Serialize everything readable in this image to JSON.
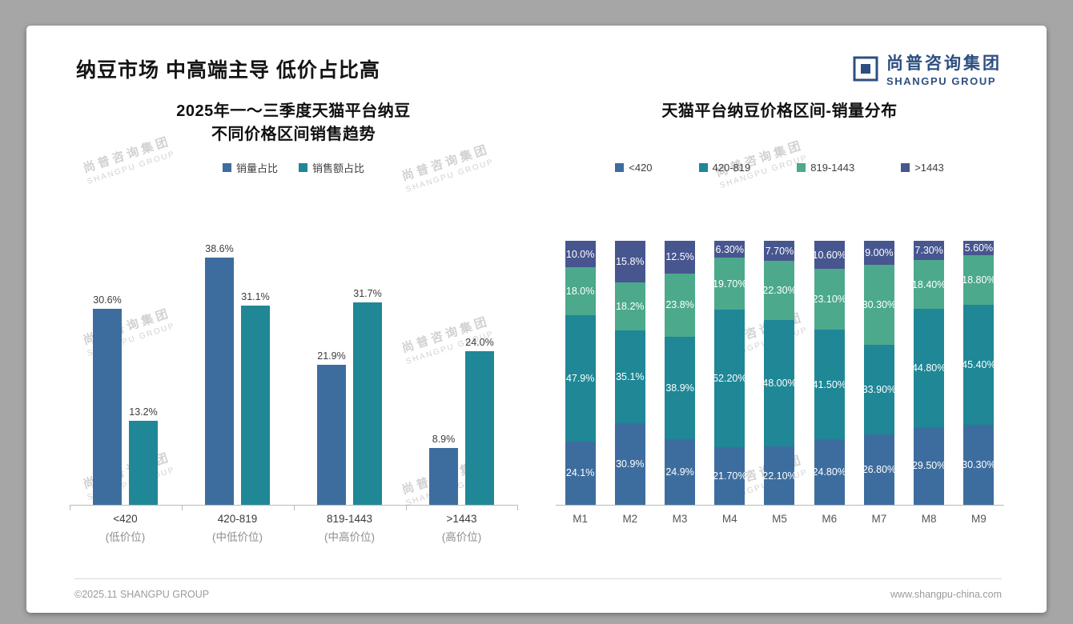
{
  "page": {
    "title": "纳豆市场 中高端主导 低价占比高",
    "logo": {
      "name_cn": "尚普咨询集团",
      "name_en": "SHANGPU GROUP"
    },
    "watermark": {
      "line1": "尚普咨询集团",
      "line2": "SHANGPU GROUP"
    },
    "footer": {
      "left": "©2025.11 SHANGPU GROUP",
      "right": "www.shangpu-china.com"
    }
  },
  "colors": {
    "blue": "#3d6d9e",
    "teal": "#1f8796",
    "green": "#4ca98c",
    "navy": "#47568f"
  },
  "chart_data": [
    {
      "type": "bar",
      "title": "2025年一～三季度天猫平台纳豆 不同价格区间销售趋势",
      "title_lines": [
        "2025年一～三季度天猫平台纳豆",
        "不同价格区间销售趋势"
      ],
      "categories": [
        "<420",
        "420-819",
        "819-1443",
        ">1443"
      ],
      "category_sublabels": [
        "(低价位)",
        "(中低价位)",
        "(中高价位)",
        "(高价位)"
      ],
      "series": [
        {
          "name": "销量占比",
          "color_key": "blue",
          "values": [
            30.6,
            38.6,
            21.9,
            8.9
          ],
          "labels": [
            "30.6%",
            "38.6%",
            "21.9%",
            "8.9%"
          ]
        },
        {
          "name": "销售额占比",
          "color_key": "teal",
          "values": [
            13.2,
            31.1,
            31.7,
            24.0
          ],
          "labels": [
            "13.2%",
            "31.1%",
            "31.7%",
            "24.0%"
          ]
        }
      ],
      "xlabel": "",
      "ylabel": "",
      "ylim": [
        0,
        45
      ],
      "grid": false,
      "legend_position": "top"
    },
    {
      "type": "bar",
      "stacked": true,
      "title": "天猫平台纳豆价格区间-销量分布",
      "categories": [
        "M1",
        "M2",
        "M3",
        "M4",
        "M5",
        "M6",
        "M7",
        "M8",
        "M9"
      ],
      "series": [
        {
          "name": "<420",
          "color_key": "blue",
          "values": [
            24.1,
            30.9,
            24.9,
            21.7,
            22.1,
            24.8,
            26.8,
            29.5,
            30.3
          ],
          "labels": [
            "24.1%",
            "30.9%",
            "24.9%",
            "21.70%",
            "22.10%",
            "24.80%",
            "26.80%",
            "29.50%",
            "30.30%"
          ]
        },
        {
          "name": "420-819",
          "color_key": "teal",
          "values": [
            47.9,
            35.1,
            38.9,
            52.2,
            48.0,
            41.5,
            33.9,
            44.8,
            45.4
          ],
          "labels": [
            "47.9%",
            "35.1%",
            "38.9%",
            "52.20%",
            "48.00%",
            "41.50%",
            "33.90%",
            "44.80%",
            "45.40%"
          ]
        },
        {
          "name": "819-1443",
          "color_key": "green",
          "values": [
            18.0,
            18.2,
            23.8,
            19.7,
            22.3,
            23.1,
            30.3,
            18.4,
            18.8
          ],
          "labels": [
            "18.0%",
            "18.2%",
            "23.8%",
            "19.70%",
            "22.30%",
            "23.10%",
            "30.30%",
            "18.40%",
            "18.80%"
          ]
        },
        {
          "name": ">1443",
          "color_key": "navy",
          "values": [
            10.0,
            15.8,
            12.5,
            6.3,
            7.7,
            10.6,
            9.0,
            7.3,
            5.6
          ],
          "labels": [
            "10.0%",
            "15.8%",
            "12.5%",
            "6.30%",
            "7.70%",
            "10.60%",
            "9.00%",
            "7.30%",
            "5.60%"
          ]
        }
      ],
      "xlabel": "",
      "ylabel": "",
      "ylim": [
        0,
        100
      ],
      "grid": false,
      "legend_position": "top"
    }
  ]
}
